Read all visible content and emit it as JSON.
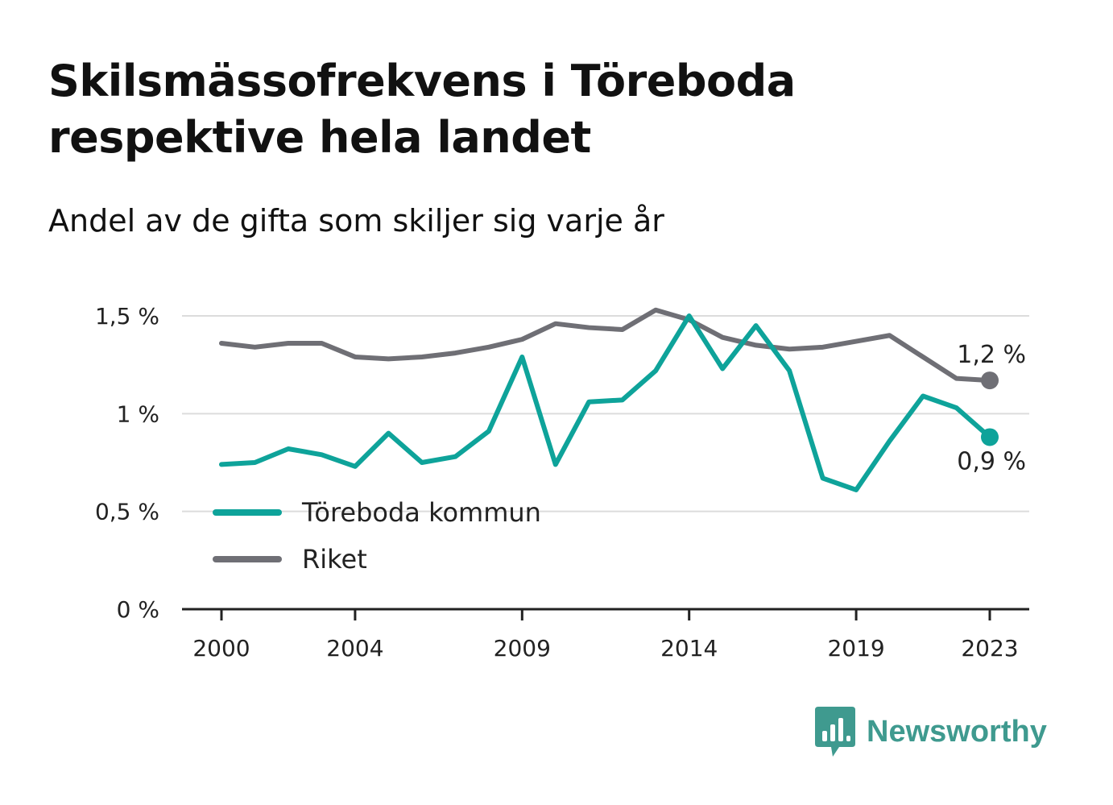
{
  "title": "Skilsmässofrekvens i Töreboda respektive hela landet",
  "subtitle": "Andel av de gifta som skiljer sig varje år",
  "brand": {
    "name": "Newsworthy",
    "icon": "bar-chart-speech-bubble-icon",
    "color": "#3f9a8f"
  },
  "chart_data": {
    "type": "line",
    "title": "Skilsmässofrekvens i Töreboda respektive hela landet",
    "subtitle": "Andel av de gifta som skiljer sig varje år",
    "x": [
      2000,
      2001,
      2002,
      2003,
      2004,
      2005,
      2006,
      2007,
      2008,
      2009,
      2010,
      2011,
      2012,
      2013,
      2014,
      2015,
      2016,
      2017,
      2018,
      2019,
      2020,
      2021,
      2022,
      2023
    ],
    "x_tick_values": [
      2000,
      2004,
      2009,
      2014,
      2019,
      2023
    ],
    "x_tick_labels": [
      "2000",
      "2004",
      "2009",
      "2014",
      "2019",
      "2023"
    ],
    "y_ticks": [
      0,
      0.5,
      1,
      1.5
    ],
    "y_tick_labels": [
      "0 %",
      "0,5 %",
      "1 %",
      "1,5 %"
    ],
    "ylim": [
      0,
      1.5
    ],
    "grid": true,
    "legend_position": "bottom-left",
    "series": [
      {
        "name": "Töreboda kommun",
        "color": "#0ea39a",
        "values": [
          0.74,
          0.75,
          0.82,
          0.79,
          0.73,
          0.9,
          0.75,
          0.78,
          0.91,
          1.29,
          0.74,
          1.06,
          1.07,
          1.22,
          1.5,
          1.23,
          1.45,
          1.22,
          0.67,
          0.61,
          0.86,
          1.09,
          1.03,
          0.88
        ],
        "end_label": "0,9 %"
      },
      {
        "name": "Riket",
        "color": "#6f6f75",
        "values": [
          1.36,
          1.34,
          1.36,
          1.36,
          1.29,
          1.28,
          1.29,
          1.31,
          1.34,
          1.38,
          1.46,
          1.44,
          1.43,
          1.53,
          1.48,
          1.39,
          1.35,
          1.33,
          1.34,
          1.37,
          1.4,
          1.29,
          1.18,
          1.17
        ],
        "end_label": "1,2 %"
      }
    ]
  }
}
